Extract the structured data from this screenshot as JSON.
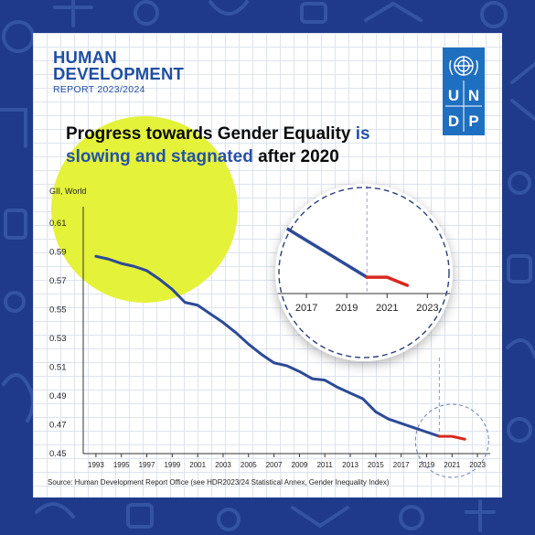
{
  "header": {
    "title_line1": "HUMAN",
    "title_line2": "DEVELOPMENT",
    "report_label": "REPORT 2023/2024"
  },
  "logo": {
    "letters": [
      "U",
      "N",
      "D",
      "P"
    ]
  },
  "headline": {
    "part1": "Progress towards Gender Equality",
    "part2": " is",
    "part3": "slowing and stagnated",
    "part4": " after 2020"
  },
  "source": "Source: Human Development Report Office (see HDR2023/24 Statistical Annex, Gender Inequality Index)",
  "colors": {
    "line": "#2d4a96",
    "stagnation": "#d72a1f",
    "highlight_circle": "#e4f23a",
    "brand": "#1f6fc0",
    "background": "#1f3a8a"
  },
  "chart_data": {
    "type": "line",
    "ylabel": "GII, World",
    "ylim": [
      0.45,
      0.61
    ],
    "yticks": [
      "0.45",
      "0.47",
      "0.49",
      "0.51",
      "0.53",
      "0.55",
      "0.57",
      "0.59",
      "0.61"
    ],
    "xlim": [
      1992,
      2024
    ],
    "xticks": [
      "1993",
      "1995",
      "1997",
      "1999",
      "2001",
      "2003",
      "2005",
      "2007",
      "2009",
      "2011",
      "2013",
      "2015",
      "2017",
      "2019",
      "2021",
      "2023"
    ],
    "series": [
      {
        "x": [
          1993,
          1994,
          1995,
          1996,
          1997,
          1998,
          1999,
          2000,
          2001,
          2002,
          2003,
          2004,
          2005,
          2006,
          2007,
          2008,
          2009,
          2010,
          2011,
          2012,
          2013,
          2014,
          2015,
          2016,
          2017,
          2018,
          2019,
          2020
        ],
        "y": [
          0.587,
          0.585,
          0.582,
          0.58,
          0.577,
          0.571,
          0.564,
          0.555,
          0.553,
          0.547,
          0.541,
          0.534,
          0.526,
          0.519,
          0.513,
          0.511,
          0.507,
          0.502,
          0.501,
          0.496,
          0.492,
          0.488,
          0.479,
          0.474,
          0.471,
          0.468,
          0.465,
          0.462
        ]
      },
      {
        "x": [
          2020,
          2021,
          2022
        ],
        "y": [
          0.462,
          0.462,
          0.46
        ]
      }
    ],
    "inset": {
      "xticks": [
        "2017",
        "2019",
        "2021",
        "2023"
      ],
      "xlim": [
        2015,
        2024.3
      ],
      "ylim": [
        0.458,
        0.477
      ]
    }
  }
}
